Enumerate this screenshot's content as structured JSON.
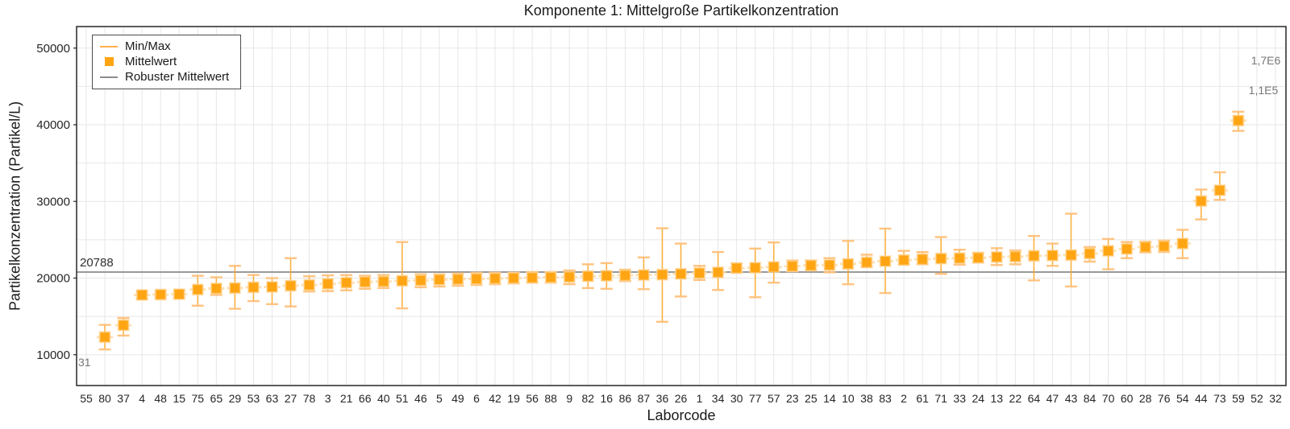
{
  "chart_data": {
    "type": "scatter",
    "title": "Komponente 1: Mittelgroße Partikelkonzentration",
    "xlabel": "Laborcode",
    "ylabel": "Partikelkonzentration (Partikel/L)",
    "ylim": [
      6000,
      52800
    ],
    "yticks": [
      10000,
      20000,
      30000,
      40000,
      50000
    ],
    "grid": {
      "horizontal_step": 5000,
      "vertical": "every-category",
      "color": "#e7e7e7"
    },
    "legend": {
      "position": "top-left",
      "items": [
        {
          "label": "Min/Max",
          "symbol": "errorbar-line",
          "color": "#ffb04d"
        },
        {
          "label": "Mittelwert",
          "symbol": "filled-square",
          "color": "#ffa513"
        },
        {
          "label": "Robuster Mittelwert",
          "symbol": "line",
          "color": "#8c8c8c"
        }
      ]
    },
    "robust_mean": {
      "value": 20788,
      "label": "20788"
    },
    "offscale_annotations": [
      {
        "for_code": "55",
        "text": "31",
        "placement": "bottom-left"
      },
      {
        "for_code": "52",
        "text": "1,1E5",
        "placement": "top-right"
      },
      {
        "for_code": "32",
        "text": "1,7E6",
        "placement": "top-right"
      }
    ],
    "points": [
      {
        "code": "55",
        "mean": null,
        "min": null,
        "max": null
      },
      {
        "code": "80",
        "mean": 12300,
        "min": 10700,
        "max": 13900
      },
      {
        "code": "37",
        "mean": 13850,
        "min": 12500,
        "max": 14800
      },
      {
        "code": "4",
        "mean": 17800,
        "min": 17300,
        "max": 18250
      },
      {
        "code": "48",
        "mean": 17850,
        "min": 17450,
        "max": 18300
      },
      {
        "code": "15",
        "mean": 17900,
        "min": 17450,
        "max": 18350
      },
      {
        "code": "75",
        "mean": 18500,
        "min": 16400,
        "max": 20300
      },
      {
        "code": "65",
        "mean": 18650,
        "min": 17800,
        "max": 20100
      },
      {
        "code": "29",
        "mean": 18700,
        "min": 16000,
        "max": 21600
      },
      {
        "code": "53",
        "mean": 18800,
        "min": 17000,
        "max": 20400
      },
      {
        "code": "63",
        "mean": 18850,
        "min": 16600,
        "max": 20000
      },
      {
        "code": "27",
        "mean": 19000,
        "min": 16300,
        "max": 22600
      },
      {
        "code": "78",
        "mean": 19100,
        "min": 18250,
        "max": 20250
      },
      {
        "code": "3",
        "mean": 19250,
        "min": 18300,
        "max": 20350
      },
      {
        "code": "21",
        "mean": 19400,
        "min": 18400,
        "max": 20400
      },
      {
        "code": "66",
        "mean": 19500,
        "min": 18600,
        "max": 20300
      },
      {
        "code": "40",
        "mean": 19550,
        "min": 18700,
        "max": 20400
      },
      {
        "code": "51",
        "mean": 19650,
        "min": 16050,
        "max": 24700
      },
      {
        "code": "46",
        "mean": 19700,
        "min": 18800,
        "max": 20500
      },
      {
        "code": "5",
        "mean": 19800,
        "min": 18900,
        "max": 20500
      },
      {
        "code": "49",
        "mean": 19850,
        "min": 19000,
        "max": 20600
      },
      {
        "code": "6",
        "mean": 19900,
        "min": 19100,
        "max": 20700
      },
      {
        "code": "42",
        "mean": 19950,
        "min": 19200,
        "max": 20700
      },
      {
        "code": "19",
        "mean": 20000,
        "min": 19300,
        "max": 20700
      },
      {
        "code": "56",
        "mean": 20050,
        "min": 19400,
        "max": 20800
      },
      {
        "code": "88",
        "mean": 20100,
        "min": 19400,
        "max": 20800
      },
      {
        "code": "9",
        "mean": 20150,
        "min": 19200,
        "max": 21000
      },
      {
        "code": "82",
        "mean": 20250,
        "min": 18700,
        "max": 21800
      },
      {
        "code": "16",
        "mean": 20300,
        "min": 18600,
        "max": 21950
      },
      {
        "code": "86",
        "mean": 20350,
        "min": 19600,
        "max": 21100
      },
      {
        "code": "87",
        "mean": 20400,
        "min": 18550,
        "max": 22700
      },
      {
        "code": "36",
        "mean": 20450,
        "min": 14300,
        "max": 26500
      },
      {
        "code": "26",
        "mean": 20550,
        "min": 17600,
        "max": 24500
      },
      {
        "code": "1",
        "mean": 20650,
        "min": 19750,
        "max": 21600
      },
      {
        "code": "34",
        "mean": 20750,
        "min": 18450,
        "max": 23400
      },
      {
        "code": "30",
        "mean": 21300,
        "min": 20750,
        "max": 21900
      },
      {
        "code": "77",
        "mean": 21350,
        "min": 17500,
        "max": 23850
      },
      {
        "code": "57",
        "mean": 21450,
        "min": 19400,
        "max": 24650
      },
      {
        "code": "23",
        "mean": 21550,
        "min": 20900,
        "max": 22300
      },
      {
        "code": "25",
        "mean": 21650,
        "min": 21000,
        "max": 22300
      },
      {
        "code": "14",
        "mean": 21700,
        "min": 20750,
        "max": 22600
      },
      {
        "code": "10",
        "mean": 21850,
        "min": 19200,
        "max": 24850
      },
      {
        "code": "38",
        "mean": 22050,
        "min": 21450,
        "max": 23050
      },
      {
        "code": "83",
        "mean": 22200,
        "min": 18050,
        "max": 26450
      },
      {
        "code": "2",
        "mean": 22350,
        "min": 21800,
        "max": 23550
      },
      {
        "code": "61",
        "mean": 22450,
        "min": 21800,
        "max": 23400
      },
      {
        "code": "71",
        "mean": 22550,
        "min": 20550,
        "max": 25350
      },
      {
        "code": "33",
        "mean": 22600,
        "min": 21750,
        "max": 23700
      },
      {
        "code": "24",
        "mean": 22650,
        "min": 22050,
        "max": 23300
      },
      {
        "code": "13",
        "mean": 22750,
        "min": 21700,
        "max": 23900
      },
      {
        "code": "22",
        "mean": 22800,
        "min": 21800,
        "max": 23600
      },
      {
        "code": "64",
        "mean": 22900,
        "min": 19700,
        "max": 25500
      },
      {
        "code": "47",
        "mean": 22950,
        "min": 21600,
        "max": 24500
      },
      {
        "code": "43",
        "mean": 23000,
        "min": 18900,
        "max": 28400
      },
      {
        "code": "84",
        "mean": 23200,
        "min": 22150,
        "max": 24050
      },
      {
        "code": "70",
        "mean": 23550,
        "min": 21150,
        "max": 25100
      },
      {
        "code": "60",
        "mean": 23800,
        "min": 22600,
        "max": 24700
      },
      {
        "code": "28",
        "mean": 24050,
        "min": 23350,
        "max": 24750
      },
      {
        "code": "76",
        "mean": 24150,
        "min": 23400,
        "max": 24900
      },
      {
        "code": "54",
        "mean": 24500,
        "min": 22600,
        "max": 26300
      },
      {
        "code": "44",
        "mean": 30050,
        "min": 27650,
        "max": 31550
      },
      {
        "code": "73",
        "mean": 31450,
        "min": 30200,
        "max": 33800
      },
      {
        "code": "59",
        "mean": 40550,
        "min": 39200,
        "max": 41700
      },
      {
        "code": "52",
        "mean": null,
        "min": null,
        "max": null
      },
      {
        "code": "32",
        "mean": null,
        "min": null,
        "max": null
      }
    ]
  },
  "colors": {
    "marker": "#ffa513",
    "marker_halo": "#ffd9a0",
    "errorbar": "#ffa724",
    "errorbar_cap": "#ffc07a",
    "robust_line": "#8c8c8c",
    "annotation_gray": "#777777",
    "text": "#262626",
    "border": "#262626"
  }
}
